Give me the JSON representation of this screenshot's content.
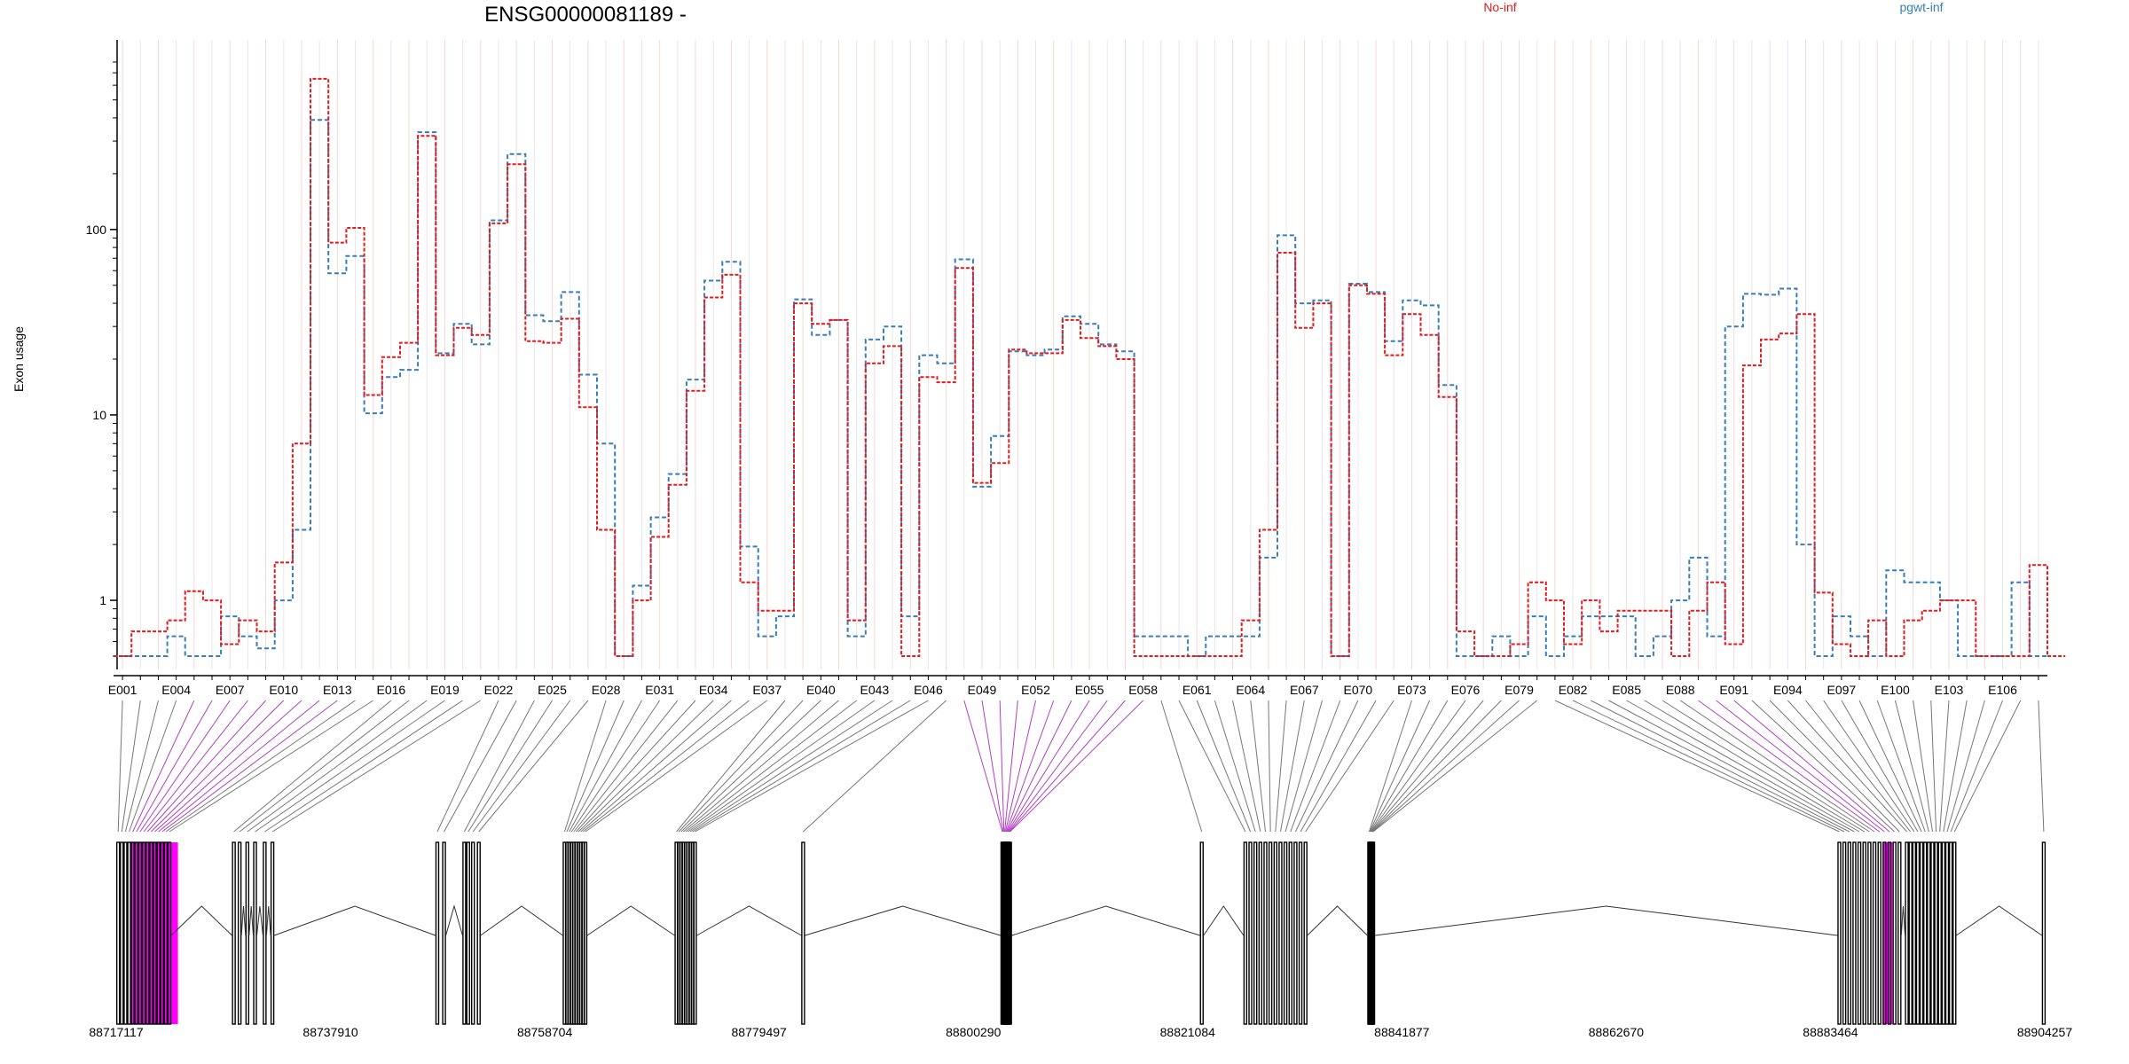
{
  "chart_data": {
    "type": "line",
    "title": "ENSG00000081189 -",
    "ylabel": "Exon usage",
    "yscale": "log",
    "ylim": [
      0.5,
      800
    ],
    "yticks": [
      1,
      10,
      100
    ],
    "ytick_labels": [
      "1",
      "10",
      "100"
    ],
    "grid": "vertical-lines-per-exon",
    "legend_placement": "top",
    "exon_labels": [
      "E001",
      "E004",
      "E007",
      "E010",
      "E013",
      "E016",
      "E019",
      "E022",
      "E025",
      "E028",
      "E031",
      "E034",
      "E037",
      "E040",
      "E043",
      "E046",
      "E049",
      "E052",
      "E055",
      "E058",
      "E061",
      "E064",
      "E067",
      "E070",
      "E073",
      "E076",
      "E079",
      "E082",
      "E085",
      "E088",
      "E091",
      "E094",
      "E097",
      "E100",
      "E103",
      "E106"
    ],
    "exons": [
      "E001",
      "E002",
      "E003",
      "E004",
      "E005",
      "E006",
      "E007",
      "E008",
      "E009",
      "E010",
      "E011",
      "E012",
      "E013",
      "E014",
      "E015",
      "E016",
      "E017",
      "E018",
      "E019",
      "E020",
      "E021",
      "E022",
      "E023",
      "E024",
      "E025",
      "E026",
      "E027",
      "E028",
      "E029",
      "E030",
      "E031",
      "E032",
      "E033",
      "E034",
      "E035",
      "E036",
      "E037",
      "E038",
      "E039",
      "E040",
      "E041",
      "E042",
      "E043",
      "E044",
      "E045",
      "E046",
      "E047",
      "E048",
      "E049",
      "E050",
      "E051",
      "E052",
      "E053",
      "E054",
      "E055",
      "E056",
      "E057",
      "E058",
      "E059",
      "E060",
      "E061",
      "E062",
      "E063",
      "E064",
      "E065",
      "E066",
      "E067",
      "E068",
      "E069",
      "E070",
      "E071",
      "E072",
      "E073",
      "E074",
      "E075",
      "E076",
      "E077",
      "E078",
      "E079",
      "E080",
      "E081",
      "E082",
      "E083",
      "E084",
      "E085",
      "E086",
      "E087",
      "E088",
      "E089",
      "E090",
      "E091",
      "E092",
      "E093",
      "E094",
      "E095",
      "E096",
      "E097",
      "E098",
      "E099",
      "E100",
      "E101",
      "E102",
      "E103",
      "E104",
      "E105",
      "E106",
      "E107",
      "E108"
    ],
    "series": [
      {
        "name": "No-inf",
        "color": "#e41a1c",
        "values": [
          0.5,
          0.68,
          0.68,
          0.78,
          1.12,
          1.0,
          0.58,
          0.78,
          0.68,
          1.6,
          7,
          650,
          85,
          102,
          12.8,
          20.5,
          24.5,
          320,
          21,
          29.5,
          27,
          108,
          225,
          25,
          24.5,
          33,
          11,
          2.4,
          0.5,
          1.0,
          2.2,
          4.2,
          13.5,
          43,
          57,
          1.25,
          0.88,
          0.88,
          40,
          31,
          32.5,
          0.78,
          19,
          23.5,
          0.5,
          16,
          15,
          62,
          4.3,
          5.5,
          22.5,
          21.5,
          21.5,
          32.5,
          26,
          23.5,
          20,
          0.5,
          0.5,
          0.5,
          0.5,
          0.5,
          0.5,
          0.78,
          2.4,
          75,
          29.5,
          40,
          0.5,
          50,
          45,
          21,
          35,
          27,
          12.5,
          0.68,
          0.5,
          0.5,
          0.58,
          1.25,
          1.0,
          0.58,
          1.0,
          0.68,
          0.88,
          0.88,
          0.88,
          0.5,
          0.88,
          1.25,
          0.58,
          18.5,
          25.5,
          27.5,
          35,
          1.1,
          0.58,
          0.5,
          0.78,
          0.5,
          0.78,
          0.88,
          1.0,
          1.0,
          0.5,
          0.5,
          0.5,
          1.55,
          0.5
        ]
      },
      {
        "name": "pgwt-inf",
        "color": "#377eb8",
        "values": [
          0.5,
          0.5,
          0.5,
          0.64,
          0.5,
          0.5,
          0.82,
          0.64,
          0.55,
          1.0,
          2.4,
          390,
          58,
          72,
          10.2,
          16,
          17.5,
          335,
          21.5,
          31,
          24,
          112,
          255,
          34.5,
          32,
          46,
          16.5,
          7,
          0.5,
          1.2,
          2.8,
          4.8,
          15.5,
          53,
          67,
          1.95,
          0.64,
          0.82,
          42,
          27,
          32.5,
          0.64,
          25.5,
          30,
          0.82,
          21,
          19,
          69,
          4.1,
          7.7,
          22,
          21,
          22.5,
          34,
          31,
          24,
          22,
          0.64,
          0.64,
          0.64,
          0.5,
          0.64,
          0.64,
          0.64,
          1.7,
          93,
          40,
          41.5,
          0.5,
          51,
          46,
          25,
          41.5,
          39,
          14.5,
          0.5,
          0.5,
          0.64,
          0.5,
          0.82,
          0.5,
          0.64,
          0.82,
          0.82,
          0.82,
          0.5,
          0.64,
          1.0,
          1.7,
          0.64,
          30,
          45,
          44.5,
          48,
          2.0,
          0.5,
          0.82,
          0.64,
          0.5,
          1.45,
          1.25,
          1.25,
          1.0,
          0.5,
          0.5,
          0.5,
          1.25,
          0.5
        ]
      }
    ],
    "genomic_axis_labels": [
      "88717117",
      "88737910",
      "88758704",
      "88779497",
      "88800290",
      "88821084",
      "88841877",
      "88862670",
      "88883464",
      "88904257"
    ],
    "highlight_color": "#ff00ff"
  }
}
